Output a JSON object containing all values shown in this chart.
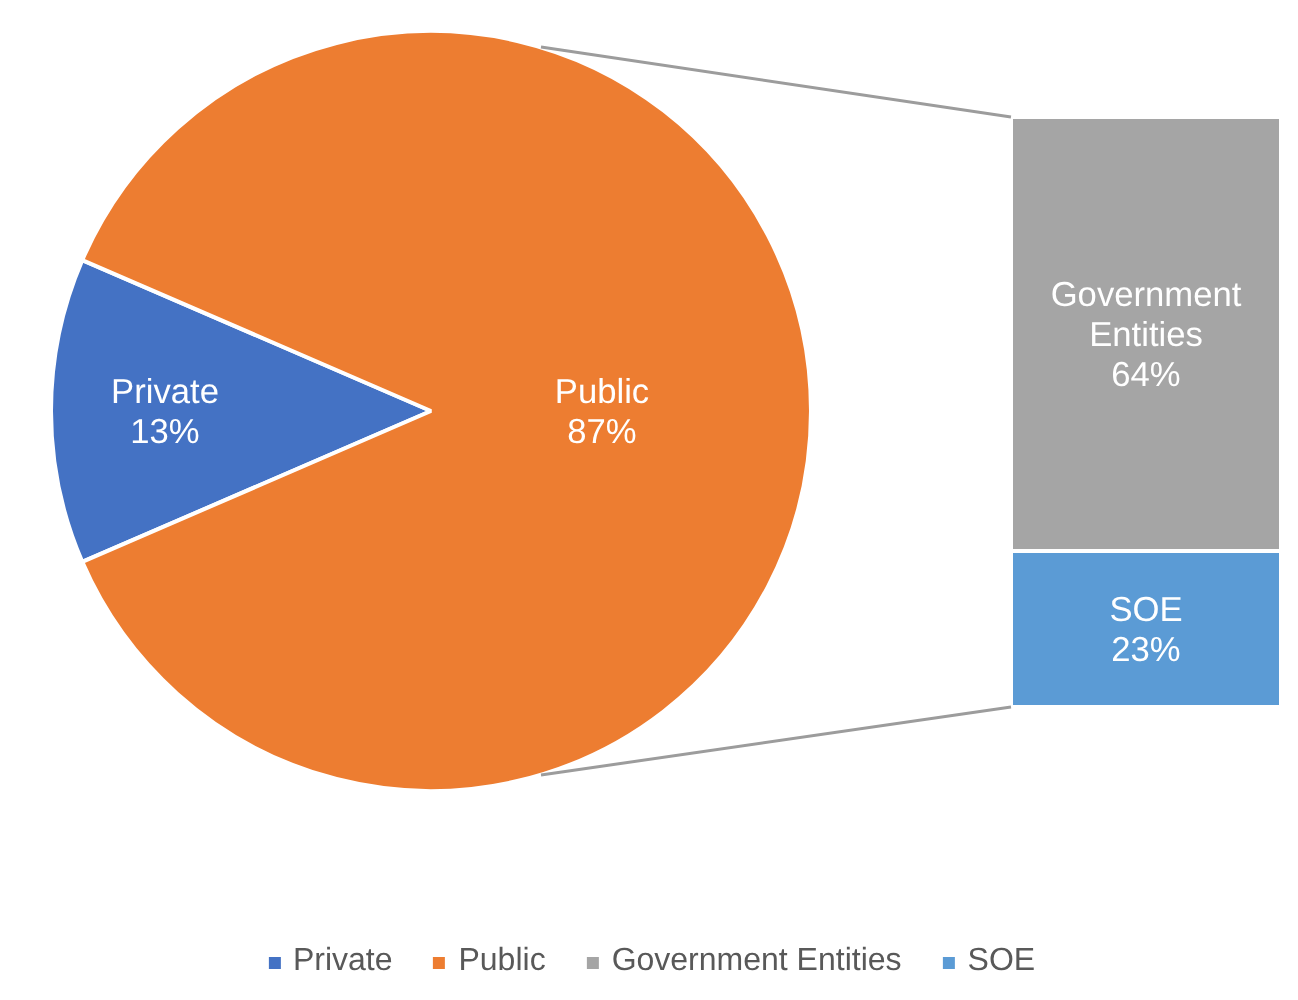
{
  "chart_data": [
    {
      "type": "pie",
      "categories": [
        "Private",
        "Public"
      ],
      "values": [
        13,
        87
      ],
      "colors": [
        "#4472c4",
        "#ed7d31"
      ],
      "value_labels": [
        "13%",
        "87%"
      ],
      "legend": "bottom"
    },
    {
      "type": "bar",
      "stacked": true,
      "categories": [
        null
      ],
      "legend": "bottom",
      "series": [
        {
          "name": "SOE",
          "color": "#5b9bd5",
          "values": [
            23
          ],
          "value_labels": [
            "23%"
          ]
        },
        {
          "name": "Government Entities",
          "color": "#a5a5a5",
          "values": [
            64
          ],
          "value_labels": [
            "64%"
          ]
        }
      ]
    }
  ]
}
